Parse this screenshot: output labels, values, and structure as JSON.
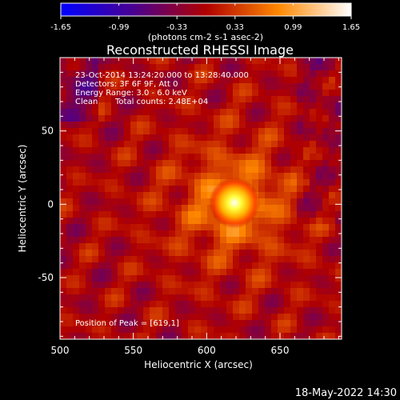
{
  "chart_data": {
    "type": "heatmap",
    "title": "Reconstructed RHESSI Image",
    "xlabel": "Heliocentric X (arcsec)",
    "ylabel": "Heliocentric Y (arcsec)",
    "xlim": [
      500,
      692
    ],
    "ylim": [
      -92,
      100
    ],
    "x_ticks": [
      500,
      550,
      600,
      650
    ],
    "y_ticks": [
      -50,
      0,
      50
    ],
    "colorbar": {
      "min": -1.65,
      "max": 1.65,
      "ticks": [
        "-1.65",
        "-0.99",
        "-0.33",
        "0.33",
        "0.99",
        "1.65"
      ],
      "units_label": "(photons cm-2 s-1 asec-2)",
      "colormap": "blue-purple-red-yellow-white"
    },
    "peak": {
      "x": 619,
      "y": 1,
      "value": 1.65
    },
    "annotations": {
      "time": "23-Oct-2014 13:24:20.000 to 13:28:40.000",
      "detectors": "Detectors: 3F 6F 9F, Att 0",
      "energy": "Energy Range: 3.0 - 6.0 keV",
      "clean": "Clean",
      "counts": "Total counts: 2.48E+04",
      "peak_label": "Position of Peak = [619,1]"
    }
  },
  "footer_date": "18-May-2022 14:30"
}
